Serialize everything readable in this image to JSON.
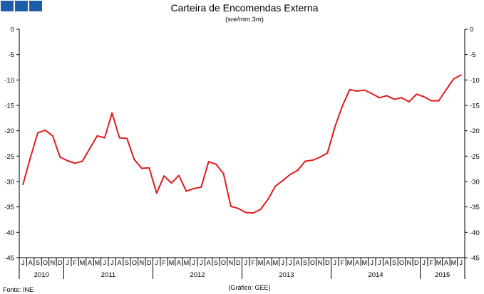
{
  "logo": {
    "colors": [
      "#1b5da8",
      "#1b5da8",
      "#1b5da8"
    ]
  },
  "footer": {
    "source": "Fonte: INE",
    "credit": "(Gráfico: GEE)"
  },
  "chart_data": {
    "type": "line",
    "title": "Carteira de Encomendas Externa",
    "subtitle": "(sre/mm 3m)",
    "ylim": [
      -45,
      0
    ],
    "yticks": [
      0,
      -5,
      -10,
      -15,
      -20,
      -25,
      -30,
      -35,
      -40,
      -45
    ],
    "ytick_labels": [
      "0",
      "-5",
      "-10",
      "-15",
      "-20",
      "-25",
      "-30",
      "-35",
      "-40",
      "-45"
    ],
    "grid": false,
    "line_color": "#e31a1c",
    "months": [
      "J",
      "A",
      "S",
      "O",
      "N",
      "D",
      "J",
      "F",
      "M",
      "A",
      "M",
      "J",
      "J",
      "A",
      "S",
      "O",
      "N",
      "D",
      "J",
      "F",
      "M",
      "A",
      "M",
      "J",
      "J",
      "A",
      "S",
      "O",
      "N",
      "D",
      "J",
      "F",
      "M",
      "A",
      "M",
      "J",
      "J",
      "A",
      "S",
      "O",
      "N",
      "D",
      "J",
      "F",
      "M",
      "A",
      "M",
      "J",
      "J",
      "A",
      "S",
      "O",
      "N",
      "D",
      "J",
      "F",
      "M",
      "A",
      "M",
      "J"
    ],
    "years": [
      {
        "label": "2010",
        "months": 6
      },
      {
        "label": "2011",
        "months": 12
      },
      {
        "label": "2012",
        "months": 12
      },
      {
        "label": "2013",
        "months": 12
      },
      {
        "label": "2014",
        "months": 12
      },
      {
        "label": "2015",
        "months": 6
      }
    ],
    "series": [
      {
        "values": [
          -30.6,
          -25.3,
          -20.4,
          -19.9,
          -21.0,
          -25.2,
          -25.9,
          -26.4,
          -26.0,
          -23.5,
          -21.0,
          -21.4,
          -16.5,
          -21.4,
          -21.5,
          -25.7,
          -27.4,
          -27.3,
          -32.3,
          -28.9,
          -30.3,
          -28.8,
          -31.9,
          -31.4,
          -31.1,
          -26.1,
          -26.6,
          -28.4,
          -34.9,
          -35.3,
          -36.1,
          -36.2,
          -35.5,
          -33.5,
          -30.9,
          -29.8,
          -28.6,
          -27.8,
          -26.0,
          -25.8,
          -25.2,
          -24.4,
          -19.3,
          -15.2,
          -11.9,
          -12.2,
          -12.0,
          -12.7,
          -13.5,
          -13.1,
          -13.8,
          -13.5,
          -14.3,
          -12.8,
          -13.3,
          -14.1,
          -14.1,
          -11.9,
          -9.8,
          -9.0
        ]
      }
    ]
  }
}
